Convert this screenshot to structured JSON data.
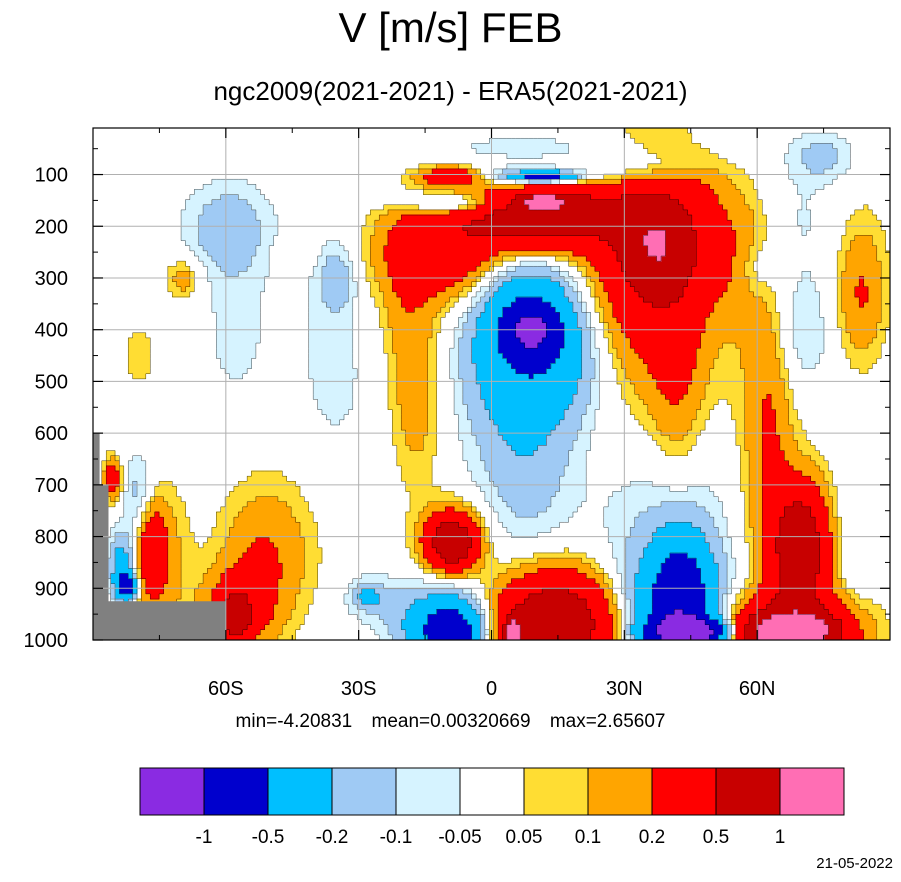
{
  "title": "V [m/s] FEB",
  "subtitle": "ngc2009(2021-2021) - ERA5(2021-2021)",
  "stats": {
    "min": "min=-4.20831",
    "mean": "mean=0.00320669",
    "max": "max=2.65607"
  },
  "date_stamp": "21-05-2022",
  "chart_data": {
    "type": "heatmap",
    "title": "V [m/s] FEB",
    "subtitle": "ngc2009(2021-2021) - ERA5(2021-2021)",
    "x_axis": {
      "range": [
        -90,
        90
      ],
      "ticks": [
        -60,
        -30,
        0,
        30,
        60
      ],
      "tick_labels": [
        "60S",
        "30S",
        "0",
        "30N",
        "60N"
      ]
    },
    "y_axis": {
      "range": [
        1000,
        10
      ],
      "ticks": [
        100,
        200,
        300,
        400,
        500,
        600,
        700,
        800,
        900,
        1000
      ],
      "tick_labels": [
        "100",
        "200",
        "300",
        "400",
        "500",
        "600",
        "700",
        "800",
        "900",
        "1000"
      ],
      "inverted": true
    },
    "grid": true,
    "levels": [
      -1,
      -0.5,
      -0.2,
      -0.1,
      -0.05,
      0.05,
      0.1,
      0.2,
      0.5,
      1
    ],
    "colorbar": {
      "labels": [
        "-1",
        "-0.5",
        "-0.2",
        "-0.1",
        "-0.05",
        "0.05",
        "0.1",
        "0.2",
        "0.5",
        "1"
      ],
      "colors": [
        "#8a2be2",
        "#0000cd",
        "#00bfff",
        "#9fcaf4",
        "#d6f3ff",
        "#ffffff",
        "#ffdd33",
        "#ffa500",
        "#ff0000",
        "#c80000",
        "#ff6eb4"
      ]
    },
    "missing_color": "#808080",
    "features": [
      {
        "lat": -70,
        "p": 300,
        "rx": 4,
        "ry": 40,
        "v": 0.15
      },
      {
        "lat": -80,
        "p": 450,
        "rx": 5,
        "ry": 80,
        "v": 0.07
      },
      {
        "lat": -60,
        "p": 200,
        "rx": 10,
        "ry": 90,
        "v": -0.15
      },
      {
        "lat": -58,
        "p": 400,
        "rx": 8,
        "ry": 180,
        "v": -0.07
      },
      {
        "lat": -36,
        "p": 450,
        "rx": 10,
        "ry": 300,
        "v": -0.07
      },
      {
        "lat": -35,
        "p": 300,
        "rx": 4,
        "ry": 60,
        "v": -0.15
      },
      {
        "lat": -45,
        "p": 250,
        "rx": 4,
        "ry": 30,
        "v": 0.07
      },
      {
        "lat": -20,
        "p": 350,
        "rx": 5,
        "ry": 150,
        "v": 0.07
      },
      {
        "lat": -17,
        "p": 530,
        "rx": 6,
        "ry": 180,
        "v": 0.15
      },
      {
        "lat": -13,
        "p": 260,
        "rx": 16,
        "ry": 130,
        "v": 0.15
      },
      {
        "lat": -10,
        "p": 240,
        "rx": 13,
        "ry": 80,
        "v": 0.3
      },
      {
        "lat": -10,
        "p": 140,
        "rx": 16,
        "ry": 30,
        "v": -0.08
      },
      {
        "lat": -8,
        "p": 155,
        "rx": 10,
        "ry": 20,
        "v": -0.3
      },
      {
        "lat": -9,
        "p": 100,
        "rx": 7,
        "ry": 18,
        "v": 0.35
      },
      {
        "lat": 12,
        "p": 45,
        "rx": 35,
        "ry": 30,
        "v": -0.07
      },
      {
        "lat": 12,
        "p": 155,
        "rx": 20,
        "ry": 50,
        "v": 0.3
      },
      {
        "lat": 12,
        "p": 190,
        "rx": 16,
        "ry": 60,
        "v": 0.6
      },
      {
        "lat": 12,
        "p": 150,
        "rx": 4,
        "ry": 12,
        "v": 1.3
      },
      {
        "lat": 10,
        "p": 100,
        "rx": 14,
        "ry": 18,
        "v": -0.3
      },
      {
        "lat": 12,
        "p": 100,
        "rx": 6,
        "ry": 8,
        "v": -0.6
      },
      {
        "lat": 35,
        "p": 85,
        "rx": 12,
        "ry": 30,
        "v": -0.15
      },
      {
        "lat": 36,
        "p": 330,
        "rx": 17,
        "ry": 280,
        "v": 0.15
      },
      {
        "lat": 36,
        "p": 260,
        "rx": 12,
        "ry": 170,
        "v": 0.3
      },
      {
        "lat": 38,
        "p": 230,
        "rx": 8,
        "ry": 90,
        "v": 0.6
      },
      {
        "lat": 48,
        "p": 120,
        "rx": 6,
        "ry": 70,
        "v": 0.07
      },
      {
        "lat": 42,
        "p": 500,
        "rx": 6,
        "ry": 200,
        "v": 0.15
      },
      {
        "lat": 5,
        "p": 450,
        "rx": 14,
        "ry": 210,
        "v": -0.12
      },
      {
        "lat": 8,
        "p": 560,
        "rx": 11,
        "ry": 320,
        "v": -0.15
      },
      {
        "lat": 8,
        "p": 400,
        "rx": 12,
        "ry": 130,
        "v": -0.3
      },
      {
        "lat": 9,
        "p": 400,
        "rx": 6,
        "ry": 50,
        "v": -0.7
      },
      {
        "lat": 18,
        "p": 460,
        "rx": 10,
        "ry": 120,
        "v": -0.12
      },
      {
        "lat": -9,
        "p": 810,
        "rx": 7,
        "ry": 70,
        "v": 0.3
      },
      {
        "lat": -9,
        "p": 815,
        "rx": 5,
        "ry": 45,
        "v": 0.6
      },
      {
        "lat": -11,
        "p": 970,
        "rx": 11,
        "ry": 80,
        "v": -0.3
      },
      {
        "lat": -9,
        "p": 990,
        "rx": 7,
        "ry": 50,
        "v": -0.6
      },
      {
        "lat": -28,
        "p": 920,
        "rx": 6,
        "ry": 45,
        "v": -0.12
      },
      {
        "lat": -28,
        "p": 920,
        "rx": 2,
        "ry": 15,
        "v": -0.3
      },
      {
        "lat": 15,
        "p": 960,
        "rx": 15,
        "ry": 110,
        "v": 0.3
      },
      {
        "lat": 14,
        "p": 980,
        "rx": 13,
        "ry": 90,
        "v": 0.6
      },
      {
        "lat": 5,
        "p": 995,
        "rx": 1.5,
        "ry": 30,
        "v": 1.3
      },
      {
        "lat": 40,
        "p": 860,
        "rx": 16,
        "ry": 250,
        "v": -0.15
      },
      {
        "lat": 40,
        "p": 960,
        "rx": 12,
        "ry": 100,
        "v": -0.3
      },
      {
        "lat": 43,
        "p": 920,
        "rx": 6,
        "ry": 110,
        "v": -0.6
      },
      {
        "lat": 45,
        "p": 990,
        "rx": 8,
        "ry": 25,
        "v": -1.3
      },
      {
        "lat": 62,
        "p": 520,
        "rx": 8,
        "ry": 430,
        "v": 0.07
      },
      {
        "lat": 63,
        "p": 600,
        "rx": 5,
        "ry": 250,
        "v": 0.15
      },
      {
        "lat": 55,
        "p": 250,
        "rx": 8,
        "ry": 120,
        "v": 0.15
      },
      {
        "lat": 60,
        "p": 280,
        "rx": 5,
        "ry": 60,
        "v": -0.12
      },
      {
        "lat": 70,
        "p": 400,
        "rx": 7,
        "ry": 120,
        "v": -0.12
      },
      {
        "lat": 68,
        "p": 180,
        "rx": 10,
        "ry": 110,
        "v": -0.07
      },
      {
        "lat": 75,
        "p": 60,
        "rx": 8,
        "ry": 50,
        "v": -0.12
      },
      {
        "lat": 84,
        "p": 340,
        "rx": 5,
        "ry": 120,
        "v": 0.15
      },
      {
        "lat": 84,
        "p": 280,
        "rx": 7,
        "ry": 160,
        "v": 0.07
      },
      {
        "lat": 70,
        "p": 820,
        "rx": 8,
        "ry": 140,
        "v": 0.3
      },
      {
        "lat": 70,
        "p": 830,
        "rx": 5,
        "ry": 100,
        "v": 0.6
      },
      {
        "lat": 68,
        "p": 990,
        "rx": 14,
        "ry": 70,
        "v": 0.7
      },
      {
        "lat": 68,
        "p": 990,
        "rx": 8,
        "ry": 30,
        "v": 1.4
      },
      {
        "lat": 82,
        "p": 800,
        "rx": 4,
        "ry": 150,
        "v": -0.07
      },
      {
        "lat": -58,
        "p": 950,
        "rx": 8,
        "ry": 80,
        "v": 0.3
      },
      {
        "lat": -58,
        "p": 960,
        "rx": 3,
        "ry": 40,
        "v": 0.6
      },
      {
        "lat": -48,
        "p": 800,
        "rx": 14,
        "ry": 180,
        "v": 0.07
      },
      {
        "lat": -52,
        "p": 850,
        "rx": 9,
        "ry": 120,
        "v": 0.15
      },
      {
        "lat": -75,
        "p": 850,
        "rx": 6,
        "ry": 150,
        "v": 0.15
      },
      {
        "lat": -77,
        "p": 830,
        "rx": 3,
        "ry": 90,
        "v": 0.3
      },
      {
        "lat": -80,
        "p": 720,
        "rx": 4,
        "ry": 80,
        "v": -0.15
      },
      {
        "lat": -84,
        "p": 860,
        "rx": 3,
        "ry": 60,
        "v": -0.3
      },
      {
        "lat": -83,
        "p": 900,
        "rx": 2,
        "ry": 25,
        "v": -0.7
      },
      {
        "lat": -86,
        "p": 690,
        "rx": 2,
        "ry": 40,
        "v": 0.35
      },
      {
        "lat": -63,
        "p": 990,
        "rx": 2.5,
        "ry": 30,
        "v": -0.3
      }
    ]
  }
}
